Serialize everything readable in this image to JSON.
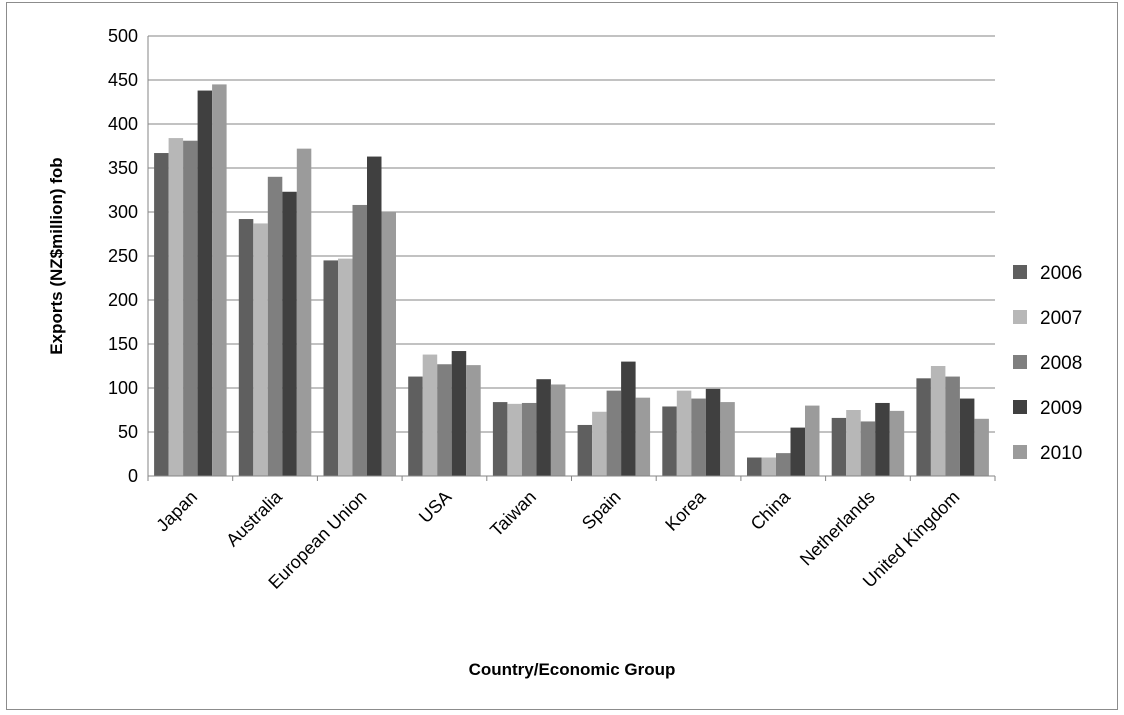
{
  "chart_data": {
    "type": "bar",
    "title": "",
    "xlabel": "Country/Economic Group",
    "ylabel": "Exports (NZ$million) fob",
    "ylim": [
      0,
      500
    ],
    "yticks": [
      0,
      50,
      100,
      150,
      200,
      250,
      300,
      350,
      400,
      450,
      500
    ],
    "grid": true,
    "legend_position": "right",
    "categories": [
      "Japan",
      "Australia",
      "European Union",
      "USA",
      "Taiwan",
      "Spain",
      "Korea",
      "China",
      "Netherlands",
      "United Kingdom"
    ],
    "series": [
      {
        "name": "2006",
        "color": "#5f5f5f",
        "values": [
          367,
          292,
          245,
          113,
          84,
          58,
          79,
          21,
          66,
          111
        ]
      },
      {
        "name": "2007",
        "color": "#b7b7b7",
        "values": [
          384,
          287,
          247,
          138,
          82,
          73,
          97,
          21,
          75,
          125
        ]
      },
      {
        "name": "2008",
        "color": "#7f7f7f",
        "values": [
          381,
          340,
          308,
          127,
          83,
          97,
          88,
          26,
          62,
          113
        ]
      },
      {
        "name": "2009",
        "color": "#404040",
        "values": [
          438,
          323,
          363,
          142,
          110,
          130,
          99,
          55,
          83,
          88
        ]
      },
      {
        "name": "2010",
        "color": "#9b9b9b",
        "values": [
          445,
          372,
          300,
          126,
          104,
          89,
          84,
          80,
          74,
          65
        ]
      }
    ]
  }
}
